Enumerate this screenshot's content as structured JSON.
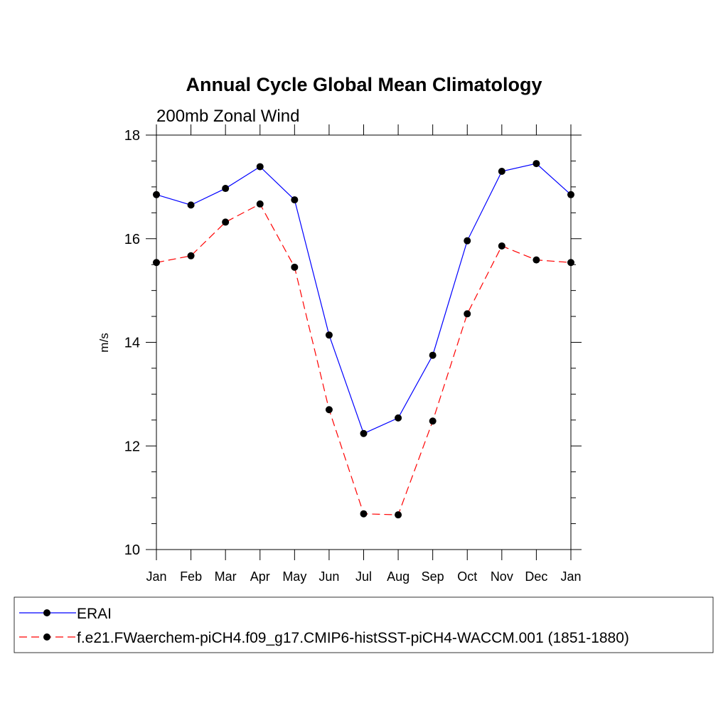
{
  "chart_data": {
    "type": "line",
    "title": "Annual Cycle Global Mean Climatology",
    "subtitle": "200mb Zonal Wind",
    "ylabel": "m/s",
    "xlabel": "",
    "categories": [
      "Jan",
      "Feb",
      "Mar",
      "Apr",
      "May",
      "Jun",
      "Jul",
      "Aug",
      "Sep",
      "Oct",
      "Nov",
      "Dec",
      "Jan"
    ],
    "ylim": [
      10,
      18
    ],
    "yticks": [
      "10",
      "12",
      "14",
      "16",
      "18"
    ],
    "grid": false,
    "legend_position": "bottom",
    "series": [
      {
        "name": "ERAI",
        "color": "#0000ff",
        "dash": "solid",
        "marker": "filled-circle",
        "values": [
          16.85,
          16.65,
          16.97,
          17.39,
          16.75,
          14.14,
          12.24,
          12.54,
          13.75,
          15.96,
          17.3,
          17.45,
          16.85
        ]
      },
      {
        "name": "f.e21.FWaerchem-piCH4.f09_g17.CMIP6-histSST-piCH4-WACCM.001 (1851-1880)",
        "color": "#ff0000",
        "dash": "dashed",
        "marker": "filled-circle",
        "values": [
          15.54,
          15.67,
          16.32,
          16.67,
          15.45,
          12.7,
          10.69,
          10.67,
          12.48,
          14.55,
          15.86,
          15.59,
          15.54
        ]
      }
    ]
  }
}
